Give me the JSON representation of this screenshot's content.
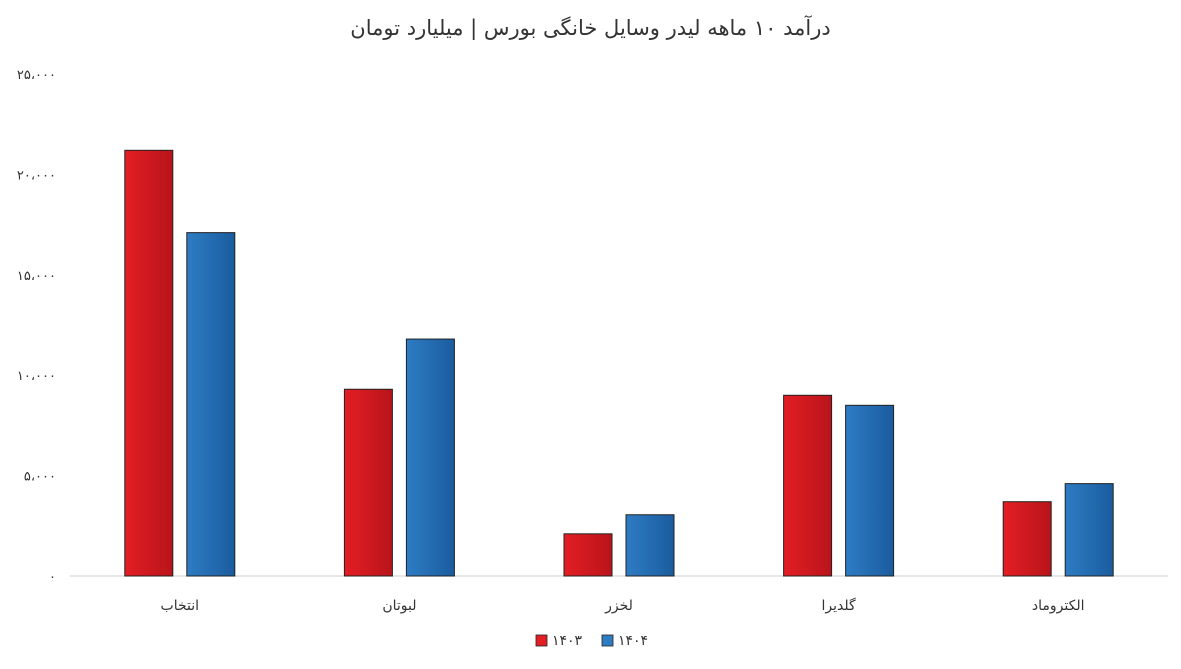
{
  "chart_data": {
    "type": "bar",
    "title": "درآمد ۱۰ ماهه لیدر وسایل خانگی بورس | میلیارد تومان",
    "categories": [
      "انتخاب",
      "لبوتان",
      "لخزر",
      "گلدیرا",
      "الکتروماد"
    ],
    "series": [
      {
        "name": "۱۴۰۳",
        "values": [
          21200,
          9300,
          2100,
          9000,
          3700
        ],
        "color": "#e31e24",
        "color_dark": "#b8141a"
      },
      {
        "name": "۱۴۰۴",
        "values": [
          17100,
          11800,
          3050,
          8500,
          4600
        ],
        "color": "#2e7cc4",
        "color_dark": "#1a5c9e"
      }
    ],
    "ylim": [
      0,
      25000
    ],
    "yticks": [
      0,
      5000,
      10000,
      15000,
      20000,
      25000
    ],
    "ytick_labels": [
      "۰",
      "۵،۰۰۰",
      "۱۰،۰۰۰",
      "۱۵،۰۰۰",
      "۲۰،۰۰۰",
      "۲۵،۰۰۰"
    ],
    "grid": false,
    "legend_position": "bottom-center",
    "xlabel": "",
    "ylabel": ""
  }
}
